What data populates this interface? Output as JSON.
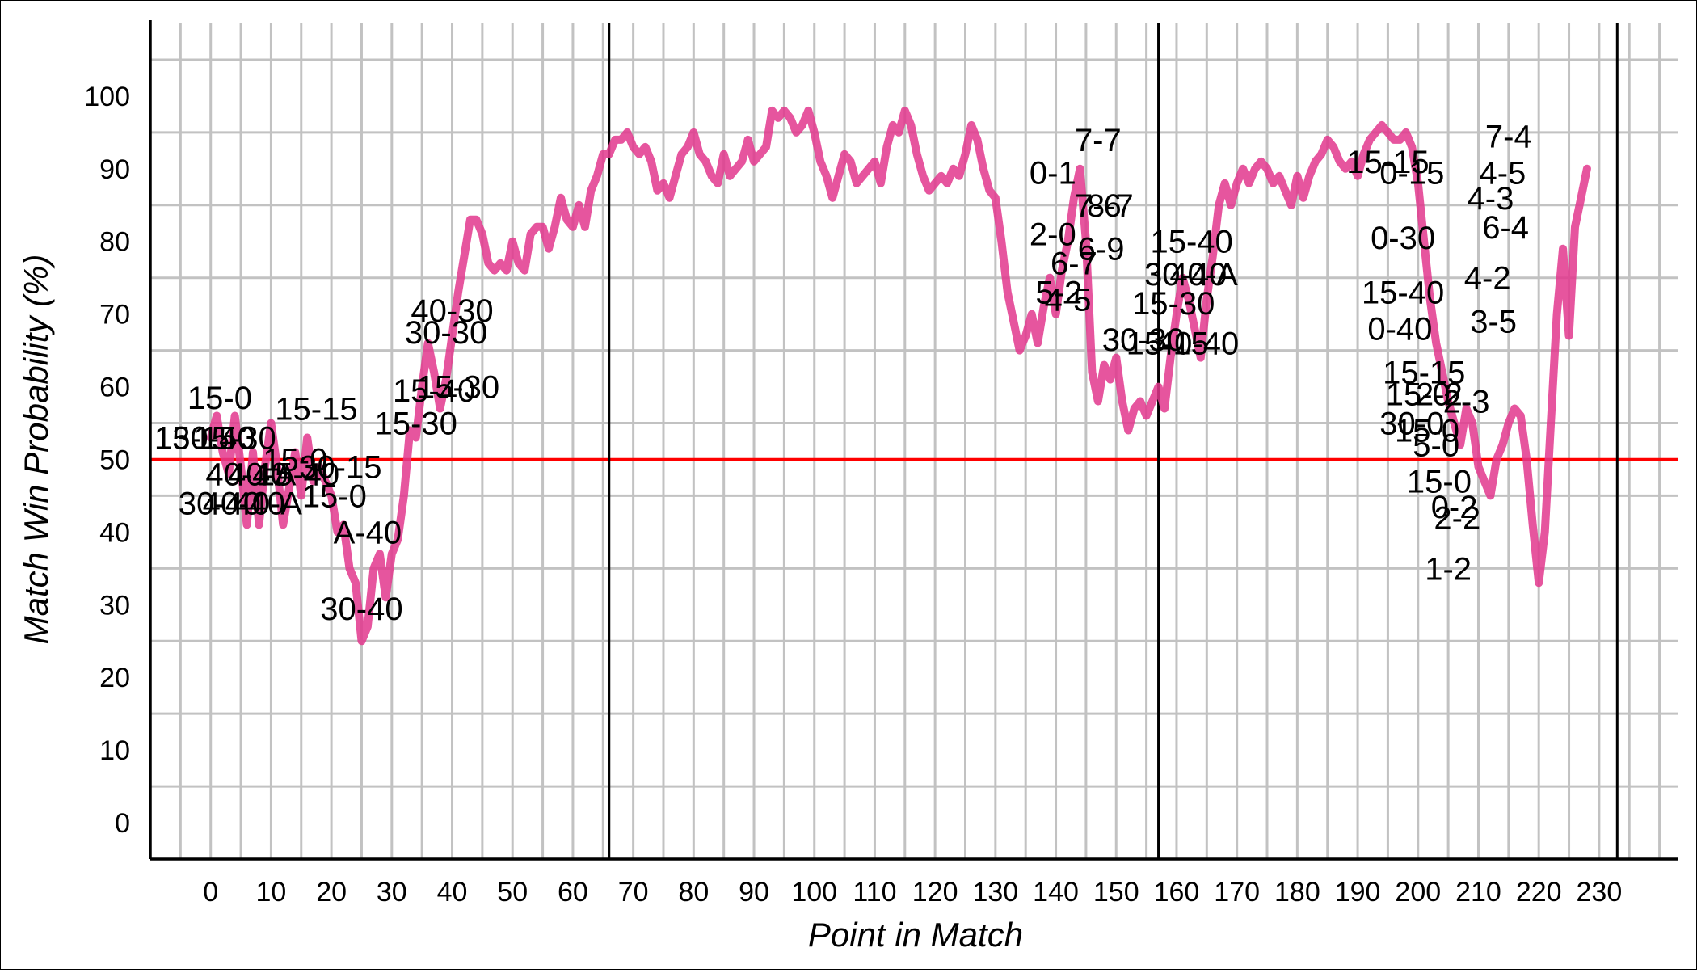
{
  "chart_data": {
    "type": "line",
    "title": "",
    "xlabel": "Point in Match",
    "ylabel": "Match Win Probability (%)",
    "xlim": [
      -10,
      243
    ],
    "ylim": [
      -5,
      110
    ],
    "xticks": [
      0,
      10,
      20,
      30,
      40,
      50,
      60,
      70,
      80,
      90,
      100,
      110,
      120,
      130,
      140,
      150,
      160,
      170,
      180,
      190,
      200,
      210,
      220,
      230
    ],
    "yticks": [
      0,
      10,
      20,
      30,
      40,
      50,
      60,
      70,
      80,
      90,
      100
    ],
    "grid": true,
    "line_color": "#e2378d",
    "reference_line": {
      "y": 50,
      "color": "#ff0000"
    },
    "set_boundaries": [
      66,
      157,
      233
    ],
    "series": [
      {
        "name": "",
        "points": [
          [
            0,
            53
          ],
          [
            1,
            56
          ],
          [
            2,
            51
          ],
          [
            3,
            48
          ],
          [
            4,
            56
          ],
          [
            5,
            49
          ],
          [
            6,
            41
          ],
          [
            7,
            51
          ],
          [
            8,
            41
          ],
          [
            9,
            49
          ],
          [
            10,
            55
          ],
          [
            11,
            49
          ],
          [
            12,
            41
          ],
          [
            13,
            46
          ],
          [
            14,
            51
          ],
          [
            15,
            45
          ],
          [
            16,
            53
          ],
          [
            17,
            47
          ],
          [
            18,
            49
          ],
          [
            19,
            47
          ],
          [
            20,
            45
          ],
          [
            21,
            40
          ],
          [
            22,
            41
          ],
          [
            23,
            35
          ],
          [
            24,
            33
          ],
          [
            25,
            25
          ],
          [
            26,
            27
          ],
          [
            27,
            35
          ],
          [
            28,
            37
          ],
          [
            29,
            31
          ],
          [
            30,
            37
          ],
          [
            31,
            39
          ],
          [
            32,
            45
          ],
          [
            33,
            54
          ],
          [
            34,
            53
          ],
          [
            35,
            60
          ],
          [
            36,
            66
          ],
          [
            37,
            62
          ],
          [
            38,
            57
          ],
          [
            39,
            61
          ],
          [
            40,
            67
          ],
          [
            41,
            73
          ],
          [
            42,
            78
          ],
          [
            43,
            83
          ],
          [
            44,
            83
          ],
          [
            45,
            81
          ],
          [
            46,
            77
          ],
          [
            47,
            76
          ],
          [
            48,
            77
          ],
          [
            49,
            76
          ],
          [
            50,
            80
          ],
          [
            51,
            77
          ],
          [
            52,
            76
          ],
          [
            53,
            81
          ],
          [
            54,
            82
          ],
          [
            55,
            82
          ],
          [
            56,
            79
          ],
          [
            57,
            82
          ],
          [
            58,
            86
          ],
          [
            59,
            83
          ],
          [
            60,
            82
          ],
          [
            61,
            85
          ],
          [
            62,
            82
          ],
          [
            63,
            87
          ],
          [
            64,
            89
          ],
          [
            65,
            92
          ],
          [
            66,
            92
          ],
          [
            67,
            94
          ],
          [
            68,
            94
          ],
          [
            69,
            95
          ],
          [
            70,
            93
          ],
          [
            71,
            92
          ],
          [
            72,
            93
          ],
          [
            73,
            91
          ],
          [
            74,
            87
          ],
          [
            75,
            88
          ],
          [
            76,
            86
          ],
          [
            77,
            89
          ],
          [
            78,
            92
          ],
          [
            79,
            93
          ],
          [
            80,
            95
          ],
          [
            81,
            92
          ],
          [
            82,
            91
          ],
          [
            83,
            89
          ],
          [
            84,
            88
          ],
          [
            85,
            92
          ],
          [
            86,
            89
          ],
          [
            87,
            90
          ],
          [
            88,
            91
          ],
          [
            89,
            94
          ],
          [
            90,
            91
          ],
          [
            91,
            92
          ],
          [
            92,
            93
          ],
          [
            93,
            98
          ],
          [
            94,
            97
          ],
          [
            95,
            98
          ],
          [
            96,
            97
          ],
          [
            97,
            95
          ],
          [
            98,
            96
          ],
          [
            99,
            98
          ],
          [
            100,
            95
          ],
          [
            101,
            91
          ],
          [
            102,
            89
          ],
          [
            103,
            86
          ],
          [
            104,
            89
          ],
          [
            105,
            92
          ],
          [
            106,
            91
          ],
          [
            107,
            88
          ],
          [
            108,
            89
          ],
          [
            109,
            90
          ],
          [
            110,
            91
          ],
          [
            111,
            88
          ],
          [
            112,
            93
          ],
          [
            113,
            96
          ],
          [
            114,
            95
          ],
          [
            115,
            98
          ],
          [
            116,
            96
          ],
          [
            117,
            92
          ],
          [
            118,
            89
          ],
          [
            119,
            87
          ],
          [
            120,
            88
          ],
          [
            121,
            89
          ],
          [
            122,
            88
          ],
          [
            123,
            90
          ],
          [
            124,
            89
          ],
          [
            125,
            92
          ],
          [
            126,
            96
          ],
          [
            127,
            94
          ],
          [
            128,
            90
          ],
          [
            129,
            87
          ],
          [
            130,
            86
          ],
          [
            131,
            80
          ],
          [
            132,
            73
          ],
          [
            133,
            69
          ],
          [
            134,
            65
          ],
          [
            135,
            67
          ],
          [
            136,
            70
          ],
          [
            137,
            66
          ],
          [
            138,
            71
          ],
          [
            139,
            75
          ],
          [
            140,
            70
          ],
          [
            141,
            76
          ],
          [
            142,
            80
          ],
          [
            143,
            86
          ],
          [
            144,
            90
          ],
          [
            145,
            80
          ],
          [
            146,
            62
          ],
          [
            147,
            58
          ],
          [
            148,
            63
          ],
          [
            149,
            61
          ],
          [
            150,
            64
          ],
          [
            151,
            58
          ],
          [
            152,
            54
          ],
          [
            153,
            57
          ],
          [
            154,
            58
          ],
          [
            155,
            56
          ],
          [
            156,
            58
          ],
          [
            157,
            60
          ],
          [
            158,
            57
          ],
          [
            159,
            64
          ],
          [
            160,
            70
          ],
          [
            161,
            75
          ],
          [
            162,
            72
          ],
          [
            163,
            68
          ],
          [
            164,
            64
          ],
          [
            165,
            72
          ],
          [
            166,
            78
          ],
          [
            167,
            85
          ],
          [
            168,
            88
          ],
          [
            169,
            85
          ],
          [
            170,
            88
          ],
          [
            171,
            90
          ],
          [
            172,
            88
          ],
          [
            173,
            90
          ],
          [
            174,
            91
          ],
          [
            175,
            90
          ],
          [
            176,
            88
          ],
          [
            177,
            89
          ],
          [
            178,
            87
          ],
          [
            179,
            85
          ],
          [
            180,
            89
          ],
          [
            181,
            86
          ],
          [
            182,
            89
          ],
          [
            183,
            91
          ],
          [
            184,
            92
          ],
          [
            185,
            94
          ],
          [
            186,
            93
          ],
          [
            187,
            91
          ],
          [
            188,
            90
          ],
          [
            189,
            91
          ],
          [
            190,
            89
          ],
          [
            191,
            92
          ],
          [
            192,
            94
          ],
          [
            193,
            95
          ],
          [
            194,
            96
          ],
          [
            195,
            95
          ],
          [
            196,
            94
          ],
          [
            197,
            94
          ],
          [
            198,
            95
          ],
          [
            199,
            93
          ],
          [
            200,
            88
          ],
          [
            201,
            80
          ],
          [
            202,
            72
          ],
          [
            203,
            66
          ],
          [
            204,
            62
          ],
          [
            205,
            58
          ],
          [
            206,
            55
          ],
          [
            207,
            52
          ],
          [
            208,
            57
          ],
          [
            209,
            55
          ],
          [
            210,
            49
          ],
          [
            211,
            47
          ],
          [
            212,
            45
          ],
          [
            213,
            50
          ],
          [
            214,
            52
          ],
          [
            215,
            55
          ],
          [
            216,
            57
          ],
          [
            217,
            56
          ],
          [
            218,
            50
          ],
          [
            219,
            41
          ],
          [
            220,
            33
          ],
          [
            221,
            40
          ],
          [
            222,
            55
          ],
          [
            223,
            70
          ],
          [
            224,
            79
          ],
          [
            225,
            67
          ],
          [
            226,
            82
          ],
          [
            227,
            86
          ],
          [
            228,
            90
          ]
        ]
      }
    ],
    "annotations": [
      {
        "text": "15-0",
        "x": 1.5,
        "y": 58.5
      },
      {
        "text": "15-15",
        "x": -2.5,
        "y": 53
      },
      {
        "text": "30-40",
        "x": 0.5,
        "y": 53
      },
      {
        "text": "15-30",
        "x": 4,
        "y": 53
      },
      {
        "text": "40-40",
        "x": 6,
        "y": 48
      },
      {
        "text": "40-A",
        "x": 8.5,
        "y": 48
      },
      {
        "text": "30-40",
        "x": 1.5,
        "y": 44
      },
      {
        "text": "40-40",
        "x": 5.5,
        "y": 44
      },
      {
        "text": "40-A",
        "x": 9.5,
        "y": 44
      },
      {
        "text": "15-15",
        "x": 17.5,
        "y": 57
      },
      {
        "text": "15-0",
        "x": 14,
        "y": 50
      },
      {
        "text": "30-15",
        "x": 21.5,
        "y": 49
      },
      {
        "text": "15-40",
        "x": 14.5,
        "y": 48
      },
      {
        "text": "15-0",
        "x": 20.5,
        "y": 45
      },
      {
        "text": "A-40",
        "x": 26,
        "y": 40
      },
      {
        "text": "30-40",
        "x": 25,
        "y": 29.5
      },
      {
        "text": "40-30",
        "x": 40,
        "y": 70.5
      },
      {
        "text": "30-30",
        "x": 39,
        "y": 67.5
      },
      {
        "text": "15-40",
        "x": 37,
        "y": 59.5
      },
      {
        "text": "15-30",
        "x": 41,
        "y": 60
      },
      {
        "text": "15-30",
        "x": 34,
        "y": 55
      },
      {
        "text": "7-7",
        "x": 147,
        "y": 94
      },
      {
        "text": "0-1",
        "x": 139.5,
        "y": 89.5
      },
      {
        "text": "7-6",
        "x": 147,
        "y": 85
      },
      {
        "text": "8-7",
        "x": 149,
        "y": 85
      },
      {
        "text": "2-0",
        "x": 139.5,
        "y": 81
      },
      {
        "text": "6-7",
        "x": 143,
        "y": 77
      },
      {
        "text": "6-9",
        "x": 147.5,
        "y": 79
      },
      {
        "text": "5-2",
        "x": 140.5,
        "y": 73
      },
      {
        "text": "4-5",
        "x": 142,
        "y": 72
      },
      {
        "text": "30-30",
        "x": 154.5,
        "y": 66.5
      },
      {
        "text": "15-40",
        "x": 162.5,
        "y": 80
      },
      {
        "text": "30-40",
        "x": 161.5,
        "y": 75.5
      },
      {
        "text": "40-A",
        "x": 164.5,
        "y": 75.5
      },
      {
        "text": "15-30",
        "x": 159.5,
        "y": 71.5
      },
      {
        "text": "15-15",
        "x": 158.5,
        "y": 66
      },
      {
        "text": "40-40",
        "x": 163.5,
        "y": 66
      },
      {
        "text": "15-15",
        "x": 195,
        "y": 91
      },
      {
        "text": "0-15",
        "x": 199,
        "y": 89.5
      },
      {
        "text": "0-30",
        "x": 197.5,
        "y": 80.5
      },
      {
        "text": "15-40",
        "x": 197.5,
        "y": 73
      },
      {
        "text": "0-40",
        "x": 197,
        "y": 68
      },
      {
        "text": "15-15",
        "x": 201,
        "y": 62
      },
      {
        "text": "15-0",
        "x": 200,
        "y": 59
      },
      {
        "text": "2-2",
        "x": 203.5,
        "y": 59
      },
      {
        "text": "2-3",
        "x": 208,
        "y": 58
      },
      {
        "text": "30-0",
        "x": 199,
        "y": 55
      },
      {
        "text": "15-0",
        "x": 201.5,
        "y": 54
      },
      {
        "text": "5-0",
        "x": 203,
        "y": 52
      },
      {
        "text": "15-0",
        "x": 203.5,
        "y": 47
      },
      {
        "text": "0-2",
        "x": 206,
        "y": 43.5
      },
      {
        "text": "2-2",
        "x": 206.5,
        "y": 42
      },
      {
        "text": "1-2",
        "x": 205,
        "y": 35
      },
      {
        "text": "7-4",
        "x": 215,
        "y": 94.5
      },
      {
        "text": "4-5",
        "x": 214,
        "y": 89.5
      },
      {
        "text": "4-3",
        "x": 212,
        "y": 86
      },
      {
        "text": "6-4",
        "x": 214.5,
        "y": 82
      },
      {
        "text": "4-2",
        "x": 211.5,
        "y": 75
      },
      {
        "text": "3-5",
        "x": 212.5,
        "y": 69
      }
    ]
  }
}
